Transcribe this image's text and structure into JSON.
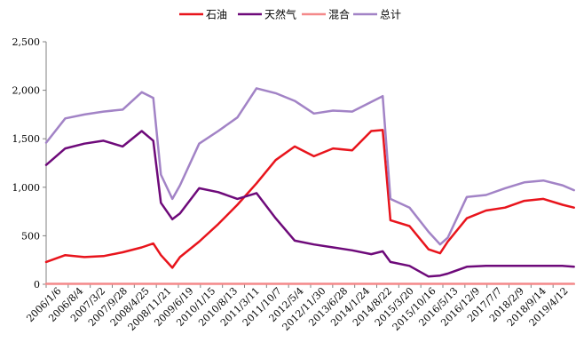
{
  "chart_data": {
    "type": "line",
    "title": "",
    "xlabel": "",
    "ylabel": "",
    "ylim": [
      0,
      2500
    ],
    "yticks": [
      0,
      500,
      1000,
      1500,
      2000,
      2500
    ],
    "ytick_labels": [
      "0",
      "500",
      "1,000",
      "1,500",
      "2,000",
      "2,500"
    ],
    "grid": false,
    "legend_position": "top",
    "xtick_labels": [
      "2006/1/6",
      "2006/8/4",
      "2007/3/2",
      "2007/9/28",
      "2008/4/25",
      "2008/11/21",
      "2009/6/19",
      "2010/1/15",
      "2010/8/13",
      "2011/3/11",
      "2011/10/7",
      "2012/5/4",
      "2012/11/30",
      "2013/6/28",
      "2014/1/24",
      "2014/8/22",
      "2015/3/20",
      "2015/10/16",
      "2016/5/13",
      "2016/12/9",
      "2017/7/7",
      "2018/2/9",
      "2018/9/14",
      "2019/4/12"
    ],
    "x": [
      2006.0,
      2006.5,
      2007.0,
      2007.5,
      2008.0,
      2008.5,
      2008.8,
      2009.0,
      2009.3,
      2009.5,
      2010.0,
      2010.5,
      2011.0,
      2011.5,
      2012.0,
      2012.5,
      2013.0,
      2013.5,
      2014.0,
      2014.5,
      2014.8,
      2015.0,
      2015.5,
      2016.0,
      2016.3,
      2016.5,
      2017.0,
      2017.5,
      2018.0,
      2018.5,
      2019.0,
      2019.5,
      2019.8
    ],
    "series": [
      {
        "name": "石油",
        "color": "#e8141c",
        "values": [
          230,
          300,
          280,
          290,
          330,
          380,
          420,
          300,
          170,
          280,
          440,
          620,
          820,
          1040,
          1280,
          1420,
          1320,
          1400,
          1380,
          1580,
          1590,
          660,
          600,
          360,
          320,
          440,
          680,
          760,
          790,
          860,
          880,
          820,
          790
        ]
      },
      {
        "name": "天然气",
        "color": "#6e0a7a",
        "values": [
          1230,
          1400,
          1450,
          1480,
          1420,
          1580,
          1480,
          840,
          670,
          730,
          990,
          950,
          880,
          940,
          680,
          450,
          410,
          380,
          350,
          310,
          340,
          230,
          190,
          80,
          90,
          110,
          180,
          190,
          190,
          190,
          190,
          190,
          180
        ]
      },
      {
        "name": "混合",
        "color": "#f4898a",
        "values": [
          5,
          5,
          5,
          5,
          5,
          5,
          5,
          5,
          5,
          5,
          5,
          5,
          5,
          5,
          5,
          5,
          5,
          5,
          5,
          5,
          5,
          5,
          5,
          5,
          5,
          5,
          5,
          5,
          5,
          5,
          5,
          5,
          5
        ]
      },
      {
        "name": "总计",
        "color": "#a283c6",
        "values": [
          1460,
          1710,
          1750,
          1780,
          1800,
          1980,
          1920,
          1130,
          880,
          1020,
          1450,
          1580,
          1720,
          2020,
          1970,
          1890,
          1760,
          1790,
          1780,
          1880,
          1940,
          880,
          790,
          540,
          410,
          480,
          900,
          920,
          990,
          1050,
          1070,
          1020,
          970
        ]
      }
    ]
  }
}
